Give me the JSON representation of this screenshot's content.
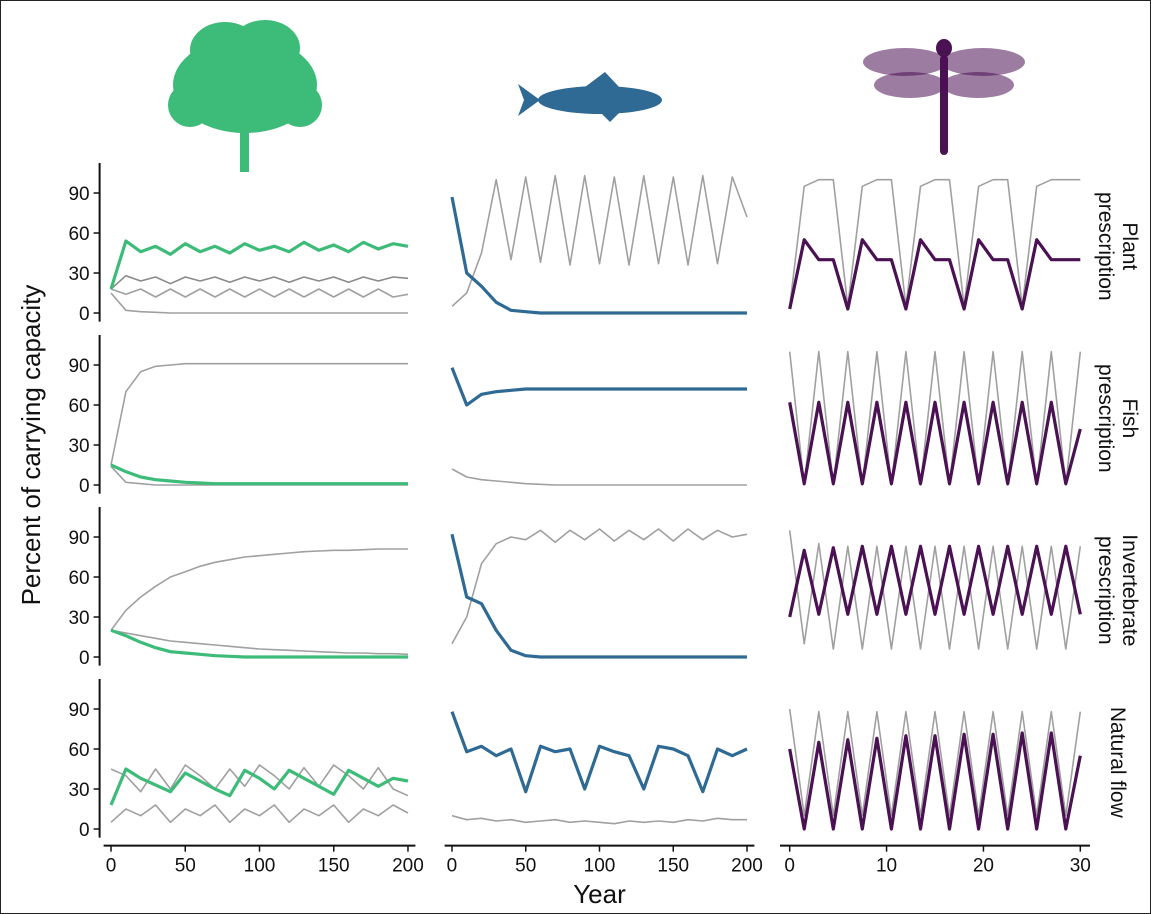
{
  "ylabel": "Percent of carrying capacity",
  "chart_data": [
    {
      "type": "line",
      "x": [
        0,
        10,
        20,
        30,
        40,
        50,
        60,
        70,
        80,
        90,
        100,
        110,
        120,
        130,
        140,
        150,
        160,
        170,
        180,
        190,
        200
      ],
      "xlim": [
        -5,
        205
      ],
      "ylim": [
        -5,
        105
      ],
      "yticks": [
        0,
        30,
        60,
        90
      ],
      "series": [
        {
          "color": "#a0a0a0",
          "values": [
            15,
            2,
            1,
            0.5,
            0,
            0,
            0,
            0,
            0,
            0,
            0,
            0,
            0,
            0,
            0,
            0,
            0,
            0,
            0,
            0,
            0
          ]
        },
        {
          "color": "#a0a0a0",
          "values": [
            18,
            14,
            18,
            12,
            18,
            12,
            18,
            12,
            18,
            12,
            18,
            12,
            18,
            12,
            18,
            12,
            18,
            12,
            18,
            12,
            14
          ]
        },
        {
          "color": "#8a8a8a",
          "values": [
            18,
            28,
            24,
            27,
            22,
            27,
            24,
            27,
            23,
            27,
            24,
            27,
            23,
            27,
            24,
            27,
            23,
            27,
            24,
            27,
            26
          ]
        },
        {
          "color": "#3dbb78",
          "values": [
            18,
            54,
            46,
            50,
            44,
            52,
            46,
            50,
            45,
            52,
            47,
            50,
            46,
            53,
            47,
            51,
            46,
            53,
            48,
            52,
            50
          ]
        }
      ]
    },
    {
      "type": "line",
      "x": [
        0,
        10,
        20,
        30,
        40,
        50,
        60,
        70,
        80,
        90,
        100,
        110,
        120,
        130,
        140,
        150,
        160,
        170,
        180,
        190,
        200
      ],
      "xlim": [
        -5,
        205
      ],
      "ylim": [
        -5,
        105
      ],
      "series": [
        {
          "color": "#a0a0a0",
          "values": [
            5,
            15,
            45,
            100,
            40,
            102,
            38,
            103,
            36,
            103,
            37,
            102,
            36,
            103,
            37,
            102,
            36,
            103,
            37,
            102,
            72
          ]
        },
        {
          "color": "#2e6a93",
          "values": [
            87,
            30,
            20,
            8,
            2,
            1,
            0,
            0,
            0,
            0,
            0,
            0,
            0,
            0,
            0,
            0,
            0,
            0,
            0,
            0,
            0
          ]
        }
      ]
    },
    {
      "type": "line",
      "x": [
        0,
        1.5,
        3,
        4.5,
        6,
        7.5,
        9,
        10.5,
        12,
        13.5,
        15,
        16.5,
        18,
        19.5,
        21,
        22.5,
        24,
        25.5,
        27,
        28.5,
        30
      ],
      "xlim": [
        -1,
        31
      ],
      "ylim": [
        -5,
        105
      ],
      "row_label": [
        "Plant",
        "prescription"
      ],
      "series": [
        {
          "color": "#a0a0a0",
          "values": [
            5,
            95,
            100,
            100,
            5,
            95,
            100,
            100,
            5,
            95,
            100,
            100,
            5,
            95,
            100,
            100,
            5,
            95,
            100,
            100,
            100
          ]
        },
        {
          "color": "#4a1153",
          "values": [
            3,
            55,
            40,
            40,
            3,
            55,
            40,
            40,
            3,
            55,
            40,
            40,
            3,
            55,
            40,
            40,
            3,
            55,
            40,
            40,
            40
          ]
        }
      ]
    },
    {
      "type": "line",
      "x": [
        0,
        10,
        20,
        30,
        40,
        50,
        60,
        70,
        80,
        90,
        100,
        110,
        120,
        130,
        140,
        150,
        160,
        170,
        180,
        190,
        200
      ],
      "xlim": [
        -5,
        205
      ],
      "ylim": [
        -5,
        105
      ],
      "yticks": [
        0,
        30,
        60,
        90
      ],
      "series": [
        {
          "color": "#a0a0a0",
          "values": [
            15,
            70,
            85,
            89,
            90,
            91,
            91,
            91,
            91,
            91,
            91,
            91,
            91,
            91,
            91,
            91,
            91,
            91,
            91,
            91,
            91
          ]
        },
        {
          "color": "#a0a0a0",
          "values": [
            14,
            2,
            1,
            0,
            0,
            0,
            0,
            0,
            0,
            0,
            0,
            0,
            0,
            0,
            0,
            0,
            0,
            0,
            0,
            0,
            0
          ]
        },
        {
          "color": "#3dbb78",
          "values": [
            15,
            10,
            6,
            4,
            3,
            2,
            1.5,
            1,
            1,
            1,
            1,
            1,
            1,
            1,
            1,
            1,
            1,
            1,
            1,
            1,
            1
          ]
        }
      ]
    },
    {
      "type": "line",
      "x": [
        0,
        10,
        20,
        30,
        40,
        50,
        60,
        70,
        80,
        90,
        100,
        110,
        120,
        130,
        140,
        150,
        160,
        170,
        180,
        190,
        200
      ],
      "xlim": [
        -5,
        205
      ],
      "ylim": [
        -5,
        105
      ],
      "series": [
        {
          "color": "#a0a0a0",
          "values": [
            12,
            6,
            4,
            3,
            2,
            1,
            0.5,
            0,
            0,
            0,
            0,
            0,
            0,
            0,
            0,
            0,
            0,
            0,
            0,
            0,
            0
          ]
        },
        {
          "color": "#2e6a93",
          "values": [
            88,
            60,
            68,
            70,
            71,
            72,
            72,
            72,
            72,
            72,
            72,
            72,
            72,
            72,
            72,
            72,
            72,
            72,
            72,
            72,
            72
          ]
        }
      ]
    },
    {
      "type": "line",
      "x": [
        0,
        1.5,
        3,
        4.5,
        6,
        7.5,
        9,
        10.5,
        12,
        13.5,
        15,
        16.5,
        18,
        19.5,
        21,
        22.5,
        24,
        25.5,
        27,
        28.5,
        30
      ],
      "xlim": [
        -1,
        31
      ],
      "ylim": [
        -5,
        105
      ],
      "row_label": [
        "Fish",
        "prescription"
      ],
      "series": [
        {
          "color": "#a0a0a0",
          "values": [
            100,
            0,
            100,
            0,
            100,
            0,
            100,
            0,
            100,
            0,
            100,
            0,
            100,
            0,
            100,
            0,
            100,
            0,
            100,
            0,
            100
          ]
        },
        {
          "color": "#4a1153",
          "values": [
            62,
            1,
            62,
            1,
            62,
            1,
            62,
            1,
            62,
            1,
            62,
            1,
            62,
            1,
            62,
            1,
            62,
            1,
            62,
            1,
            42
          ]
        }
      ]
    },
    {
      "type": "line",
      "x": [
        0,
        10,
        20,
        30,
        40,
        50,
        60,
        70,
        80,
        90,
        100,
        110,
        120,
        130,
        140,
        150,
        160,
        170,
        180,
        190,
        200
      ],
      "xlim": [
        -5,
        205
      ],
      "ylim": [
        -5,
        105
      ],
      "yticks": [
        0,
        30,
        60,
        90
      ],
      "series": [
        {
          "color": "#a0a0a0",
          "values": [
            20,
            35,
            45,
            53,
            60,
            64,
            68,
            71,
            73,
            75,
            76,
            77,
            78,
            79,
            79.5,
            80,
            80,
            80.5,
            81,
            81,
            81
          ]
        },
        {
          "color": "#a0a0a0",
          "values": [
            20,
            18,
            16,
            14,
            12,
            11,
            10,
            9,
            8,
            7,
            6,
            5.5,
            5,
            4.5,
            4,
            3.5,
            3,
            3,
            2.5,
            2.5,
            2
          ]
        },
        {
          "color": "#3dbb78",
          "values": [
            20,
            16,
            11,
            7,
            4,
            3,
            2,
            1,
            0.5,
            0,
            0,
            0,
            0,
            0,
            0,
            0,
            0,
            0,
            0,
            0,
            0
          ]
        }
      ]
    },
    {
      "type": "line",
      "x": [
        0,
        10,
        20,
        30,
        40,
        50,
        60,
        70,
        80,
        90,
        100,
        110,
        120,
        130,
        140,
        150,
        160,
        170,
        180,
        190,
        200
      ],
      "xlim": [
        -5,
        205
      ],
      "ylim": [
        -5,
        105
      ],
      "series": [
        {
          "color": "#a0a0a0",
          "values": [
            10,
            30,
            70,
            85,
            90,
            88,
            95,
            86,
            95,
            88,
            96,
            87,
            95,
            88,
            96,
            87,
            96,
            88,
            95,
            90,
            92
          ]
        },
        {
          "color": "#2e6a93",
          "values": [
            92,
            45,
            40,
            20,
            5,
            1,
            0,
            0,
            0,
            0,
            0,
            0,
            0,
            0,
            0,
            0,
            0,
            0,
            0,
            0,
            0
          ]
        }
      ]
    },
    {
      "type": "line",
      "x": [
        0,
        1.5,
        3,
        4.5,
        6,
        7.5,
        9,
        10.5,
        12,
        13.5,
        15,
        16.5,
        18,
        19.5,
        21,
        22.5,
        24,
        25.5,
        27,
        28.5,
        30
      ],
      "xlim": [
        -1,
        31
      ],
      "ylim": [
        -5,
        105
      ],
      "row_label": [
        "Invertebrate",
        "prescription"
      ],
      "series": [
        {
          "color": "#a0a0a0",
          "values": [
            95,
            10,
            85,
            6,
            83,
            6,
            83,
            6,
            83,
            6,
            83,
            6,
            83,
            6,
            83,
            6,
            83,
            6,
            83,
            6,
            83
          ]
        },
        {
          "color": "#4a1153",
          "values": [
            30,
            80,
            32,
            82,
            32,
            83,
            32,
            83,
            32,
            83,
            32,
            83,
            32,
            83,
            32,
            83,
            32,
            83,
            32,
            83,
            32
          ]
        }
      ]
    },
    {
      "type": "line",
      "x": [
        0,
        10,
        20,
        30,
        40,
        50,
        60,
        70,
        80,
        90,
        100,
        110,
        120,
        130,
        140,
        150,
        160,
        170,
        180,
        190,
        200
      ],
      "xlim": [
        -5,
        205
      ],
      "ylim": [
        -5,
        105
      ],
      "yticks": [
        0,
        30,
        60,
        90
      ],
      "xticks": [
        0,
        50,
        100,
        150,
        200
      ],
      "series": [
        {
          "color": "#a0a0a0",
          "values": [
            45,
            40,
            28,
            45,
            30,
            48,
            40,
            30,
            45,
            32,
            48,
            40,
            30,
            46,
            32,
            48,
            40,
            30,
            46,
            30,
            25
          ]
        },
        {
          "color": "#a0a0a0",
          "values": [
            5,
            15,
            10,
            18,
            5,
            15,
            10,
            18,
            5,
            15,
            10,
            18,
            5,
            15,
            10,
            18,
            5,
            15,
            10,
            18,
            12
          ]
        },
        {
          "color": "#3dbb78",
          "values": [
            18,
            45,
            38,
            33,
            28,
            42,
            36,
            30,
            25,
            44,
            38,
            30,
            44,
            38,
            32,
            26,
            44,
            38,
            32,
            38,
            36
          ]
        }
      ]
    },
    {
      "type": "line",
      "x": [
        0,
        10,
        20,
        30,
        40,
        50,
        60,
        70,
        80,
        90,
        100,
        110,
        120,
        130,
        140,
        150,
        160,
        170,
        180,
        190,
        200
      ],
      "xlim": [
        -5,
        205
      ],
      "ylim": [
        -5,
        105
      ],
      "xticks": [
        0,
        50,
        100,
        150,
        200
      ],
      "xlabel": "Year",
      "series": [
        {
          "color": "#a0a0a0",
          "values": [
            10,
            7,
            8,
            6,
            7,
            5,
            6,
            7,
            5,
            6,
            5,
            4,
            6,
            5,
            6,
            5,
            7,
            6,
            8,
            7,
            7
          ]
        },
        {
          "color": "#2e6a93",
          "values": [
            88,
            58,
            62,
            55,
            60,
            28,
            62,
            58,
            60,
            30,
            62,
            58,
            55,
            30,
            62,
            60,
            55,
            28,
            60,
            55,
            60
          ]
        }
      ]
    },
    {
      "type": "line",
      "x": [
        0,
        1.5,
        3,
        4.5,
        6,
        7.5,
        9,
        10.5,
        12,
        13.5,
        15,
        16.5,
        18,
        19.5,
        21,
        22.5,
        24,
        25.5,
        27,
        28.5,
        30
      ],
      "xlim": [
        -1,
        31
      ],
      "ylim": [
        -5,
        105
      ],
      "xticks": [
        0,
        10,
        20,
        30
      ],
      "row_label": [
        "Natural flow"
      ],
      "series": [
        {
          "color": "#a0a0a0",
          "values": [
            90,
            10,
            88,
            10,
            88,
            10,
            88,
            10,
            88,
            10,
            88,
            10,
            88,
            10,
            88,
            10,
            88,
            10,
            88,
            10,
            88
          ]
        },
        {
          "color": "#4a1153",
          "values": [
            60,
            0,
            65,
            0,
            67,
            0,
            68,
            0,
            70,
            0,
            70,
            0,
            71,
            0,
            71,
            0,
            72,
            0,
            72,
            0,
            55
          ]
        }
      ]
    }
  ]
}
